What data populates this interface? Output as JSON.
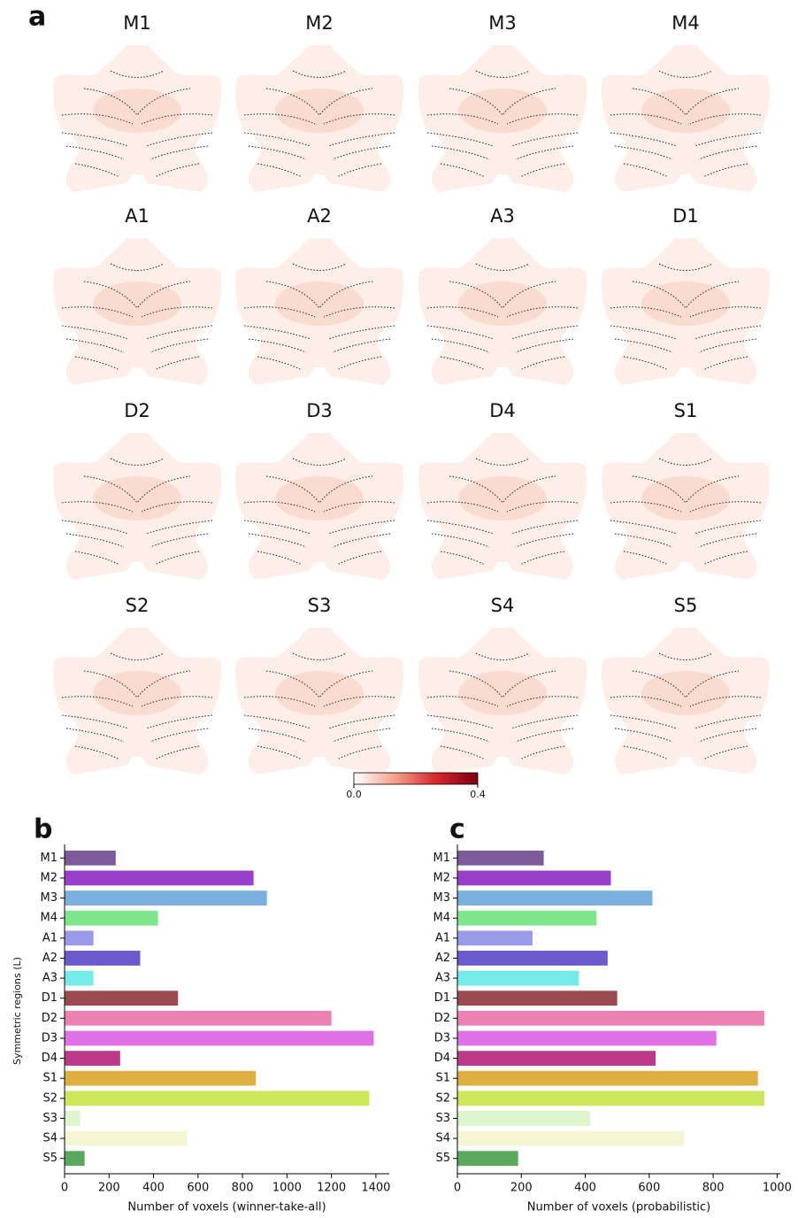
{
  "panel_a": {
    "panel_label": "a",
    "maps": [
      "M1",
      "M2",
      "M3",
      "M4",
      "A1",
      "A2",
      "A3",
      "D1",
      "D2",
      "D3",
      "D4",
      "S1",
      "S2",
      "S3",
      "S4",
      "S5"
    ],
    "colorbar": {
      "lim": [
        0,
        0.4
      ],
      "ticks": [
        {
          "value": 0,
          "label": "0.0"
        },
        0.4
      ],
      "colors": [
        "#ffffff",
        "#f4a08a",
        "#d6262b",
        "#7a0010"
      ]
    }
  },
  "chart_data": [
    {
      "type": "barh",
      "panel_label": "b",
      "xlabel": "Number of voxels (winner-take-all)",
      "ylabel": "Symmetric regions (L)",
      "categories": [
        "M1",
        "M2",
        "M3",
        "M4",
        "A1",
        "A2",
        "A3",
        "D1",
        "D2",
        "D3",
        "D4",
        "S1",
        "S2",
        "S3",
        "S4",
        "S5"
      ],
      "values": [
        230,
        850,
        910,
        420,
        130,
        340,
        130,
        510,
        1200,
        1390,
        250,
        860,
        1370,
        70,
        550,
        90
      ],
      "colors": [
        "#7d5a9a",
        "#9a3fc9",
        "#7ab0e0",
        "#7ee68a",
        "#9a9aeb",
        "#6a5acd",
        "#74eaea",
        "#9c4a52",
        "#ec82b4",
        "#e070e6",
        "#bd3a8a",
        "#dcb040",
        "#cde65a",
        "#dcf5cc",
        "#f5f5d4",
        "#5aa85e"
      ],
      "xlim": [
        0,
        1460
      ],
      "xticks": [
        0,
        200,
        400,
        600,
        800,
        1000,
        1200,
        1400
      ]
    },
    {
      "type": "barh",
      "panel_label": "c",
      "xlabel": "Number of voxels (probabilistic)",
      "categories": [
        "M1",
        "M2",
        "M3",
        "M4",
        "A1",
        "A2",
        "A3",
        "D1",
        "D2",
        "D3",
        "D4",
        "S1",
        "S2",
        "S3",
        "S4",
        "S5"
      ],
      "values": [
        270,
        480,
        610,
        435,
        235,
        470,
        380,
        500,
        960,
        810,
        620,
        940,
        960,
        415,
        710,
        190
      ],
      "colors": [
        "#7d5a9a",
        "#9a3fc9",
        "#7ab0e0",
        "#7ee68a",
        "#9a9aeb",
        "#6a5acd",
        "#74eaea",
        "#9c4a52",
        "#ec82b4",
        "#e070e6",
        "#bd3a8a",
        "#dcb040",
        "#cde65a",
        "#dcf5cc",
        "#f5f5d4",
        "#5aa85e"
      ],
      "xlim": [
        0,
        1010
      ],
      "xticks": [
        0,
        200,
        400,
        600,
        800,
        1000
      ]
    }
  ]
}
